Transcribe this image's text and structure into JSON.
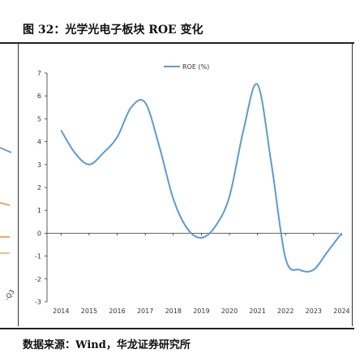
{
  "document": {
    "figure_title": "图 32：光学光电子板块 ROE 变化",
    "source": "数据来源：Wind，华龙证券研究所",
    "left_fragment_tick": "-Q3"
  },
  "colors": {
    "series_line": "#5b9bd5",
    "left_fragment_blue": "#4a90c8",
    "left_fragment_orange": "#f08a3c",
    "axis": "#333333"
  },
  "chart_data": {
    "type": "line",
    "title": "",
    "xlabel": "",
    "ylabel": "",
    "ylim": [
      -3,
      7
    ],
    "yticks": [
      -3,
      -2,
      -1,
      0,
      1,
      2,
      3,
      4,
      5,
      6,
      7
    ],
    "x_tick_labels": [
      "2014",
      "2015",
      "2016",
      "2017",
      "2018",
      "2019",
      "2020",
      "2021",
      "2022",
      "2023",
      "2024"
    ],
    "legend_position": "top-center",
    "grid": false,
    "series": [
      {
        "name": "ROE (%)",
        "x": [
          2014.0,
          2014.5,
          2015.0,
          2015.5,
          2016.0,
          2016.5,
          2017.0,
          2017.5,
          2018.0,
          2018.5,
          2019.0,
          2019.5,
          2020.0,
          2020.5,
          2021.0,
          2021.5,
          2022.0,
          2022.5,
          2023.0,
          2023.5,
          2024.0
        ],
        "values": [
          4.5,
          3.5,
          3.0,
          3.5,
          4.2,
          5.5,
          5.7,
          3.8,
          1.5,
          0.2,
          -0.2,
          0.3,
          1.6,
          4.5,
          6.5,
          3.0,
          -1.1,
          -1.6,
          -1.6,
          -0.8,
          0.0
        ]
      }
    ]
  }
}
